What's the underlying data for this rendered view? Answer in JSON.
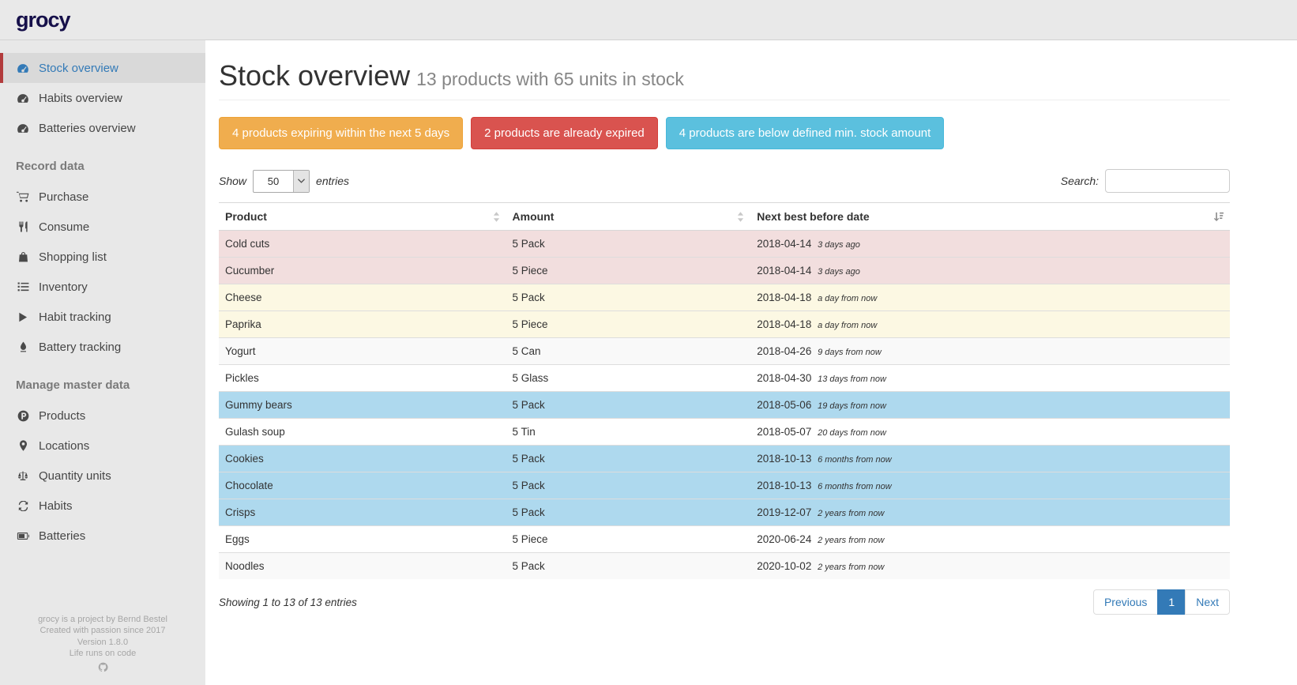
{
  "brand": {
    "logo": "grocy"
  },
  "colors": {
    "accent_red": "#b23b3c",
    "link_blue": "#337ab7",
    "alert_warning": "#f0ad4e",
    "alert_danger": "#d9534f",
    "alert_info": "#5bc0de",
    "row_danger": "#f2dede",
    "row_warning": "#fcf8e3",
    "row_info": "#aed9ee"
  },
  "sidebar": {
    "top_items": [
      {
        "icon": "tachometer-icon",
        "label": "Stock overview",
        "active": true
      },
      {
        "icon": "tachometer-icon",
        "label": "Habits overview"
      },
      {
        "icon": "tachometer-icon",
        "label": "Batteries overview"
      }
    ],
    "record_header": "Record data",
    "record_items": [
      {
        "icon": "shopping-cart-icon",
        "label": "Purchase"
      },
      {
        "icon": "utensils-icon",
        "label": "Consume"
      },
      {
        "icon": "shopping-bag-icon",
        "label": "Shopping list"
      },
      {
        "icon": "list-icon",
        "label": "Inventory"
      },
      {
        "icon": "play-icon",
        "label": "Habit tracking"
      },
      {
        "icon": "pen-nib-icon",
        "label": "Battery tracking"
      }
    ],
    "master_header": "Manage master data",
    "master_items": [
      {
        "icon": "product-hunt-icon",
        "label": "Products"
      },
      {
        "icon": "map-marker-icon",
        "label": "Locations"
      },
      {
        "icon": "balance-scale-icon",
        "label": "Quantity units"
      },
      {
        "icon": "sync-icon",
        "label": "Habits"
      },
      {
        "icon": "battery-icon",
        "label": "Batteries"
      }
    ],
    "footer_lines": [
      "grocy is a project by Bernd Bestel",
      "Created with passion since 2017",
      "Version 1.8.0",
      "Life runs on code"
    ]
  },
  "page": {
    "title": "Stock overview",
    "subtitle": "13 products with 65 units in stock"
  },
  "alerts": [
    {
      "label": "4 products expiring within the next 5 days",
      "variant": "warning"
    },
    {
      "label": "2 products are already expired",
      "variant": "danger"
    },
    {
      "label": "4 products are below defined min. stock amount",
      "variant": "info"
    }
  ],
  "controls": {
    "show_label": "Show",
    "page_length": "50",
    "entries_label": "entries",
    "search_label": "Search:",
    "search_value": ""
  },
  "table": {
    "columns": [
      {
        "label": "Product",
        "icon": "sort-icon",
        "sort": "unsorted"
      },
      {
        "label": "Amount",
        "icon": "sort-icon",
        "sort": "unsorted"
      },
      {
        "label": "Next best before date",
        "icon": "sort-amount-asc-icon",
        "sort": "asc"
      }
    ],
    "rows": [
      {
        "product": "Cold cuts",
        "amount": "5 Pack",
        "date": "2018-04-14",
        "note": "3 days ago",
        "status": "danger"
      },
      {
        "product": "Cucumber",
        "amount": "5 Piece",
        "date": "2018-04-14",
        "note": "3 days ago",
        "status": "danger"
      },
      {
        "product": "Cheese",
        "amount": "5 Pack",
        "date": "2018-04-18",
        "note": "a day from now",
        "status": "warning"
      },
      {
        "product": "Paprika",
        "amount": "5 Piece",
        "date": "2018-04-18",
        "note": "a day from now",
        "status": "warning"
      },
      {
        "product": "Yogurt",
        "amount": "5 Can",
        "date": "2018-04-26",
        "note": "9 days from now",
        "status": "none"
      },
      {
        "product": "Pickles",
        "amount": "5 Glass",
        "date": "2018-04-30",
        "note": "13 days from now",
        "status": "none"
      },
      {
        "product": "Gummy bears",
        "amount": "5 Pack",
        "date": "2018-05-06",
        "note": "19 days from now",
        "status": "info"
      },
      {
        "product": "Gulash soup",
        "amount": "5 Tin",
        "date": "2018-05-07",
        "note": "20 days from now",
        "status": "none"
      },
      {
        "product": "Cookies",
        "amount": "5 Pack",
        "date": "2018-10-13",
        "note": "6 months from now",
        "status": "info"
      },
      {
        "product": "Chocolate",
        "amount": "5 Pack",
        "date": "2018-10-13",
        "note": "6 months from now",
        "status": "info"
      },
      {
        "product": "Crisps",
        "amount": "5 Pack",
        "date": "2019-12-07",
        "note": "2 years from now",
        "status": "info"
      },
      {
        "product": "Eggs",
        "amount": "5 Piece",
        "date": "2020-06-24",
        "note": "2 years from now",
        "status": "none"
      },
      {
        "product": "Noodles",
        "amount": "5 Pack",
        "date": "2020-10-02",
        "note": "2 years from now",
        "status": "none"
      }
    ]
  },
  "table_footer": {
    "info": "Showing 1 to 13 of 13 entries",
    "pagination": {
      "previous": "Previous",
      "current_page": "1",
      "next": "Next"
    }
  }
}
